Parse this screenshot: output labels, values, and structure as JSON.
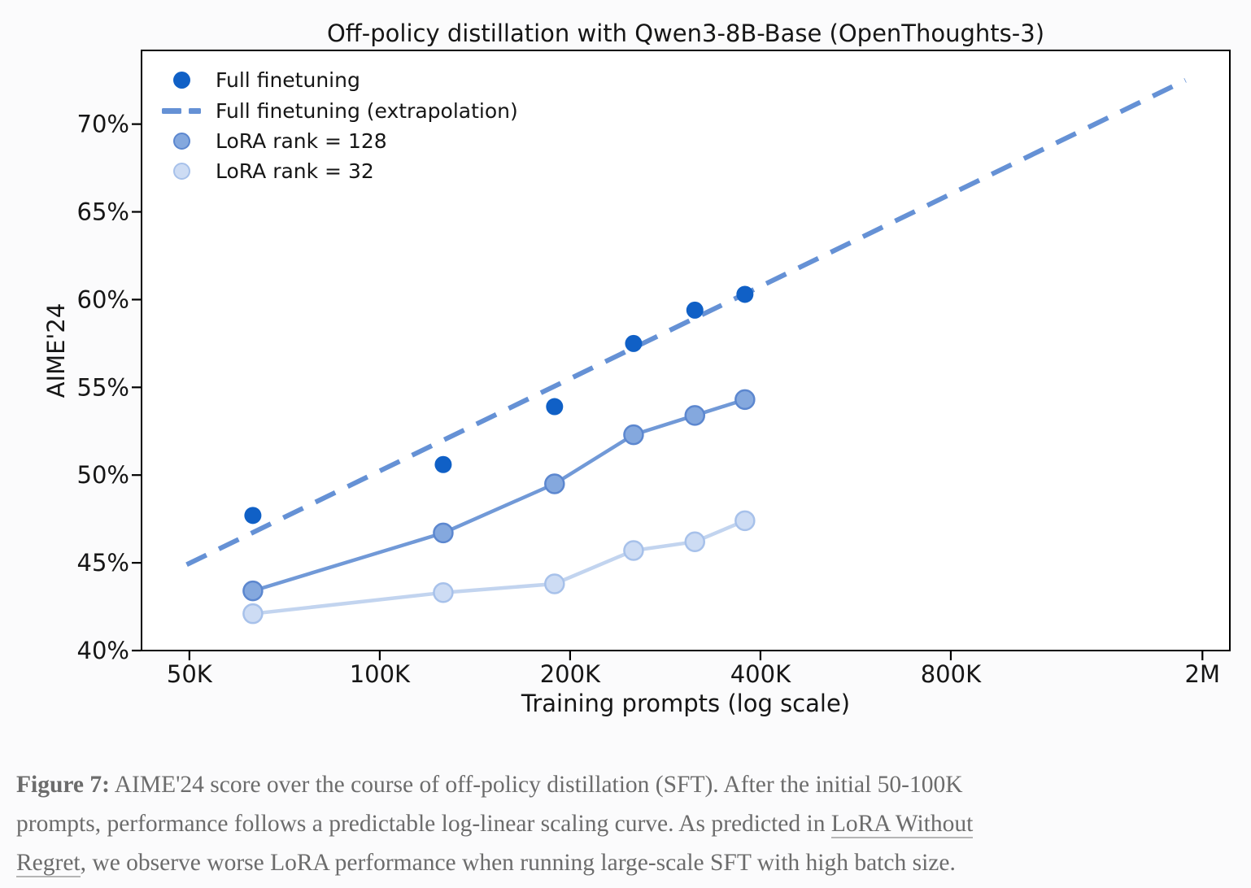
{
  "chart": {
    "title": "Off-policy distillation with Qwen3-8B-Base (OpenThoughts-3)",
    "xlabel": "Training prompts (log scale)",
    "ylabel": "AIME'24"
  },
  "chart_data": {
    "type": "scatter+line",
    "title": "Off-policy distillation with Qwen3-8B-Base (OpenThoughts-3)",
    "xlabel": "Training prompts (log scale)",
    "ylabel": "AIME'24",
    "x_scale": "log",
    "grid": false,
    "legend_position": "upper-left",
    "xlim": [
      42000,
      2210000
    ],
    "ylim": [
      40,
      74.2
    ],
    "x_ticks": [
      {
        "value": 50000,
        "label": "50K"
      },
      {
        "value": 100000,
        "label": "100K"
      },
      {
        "value": 200000,
        "label": "200K"
      },
      {
        "value": 400000,
        "label": "400K"
      },
      {
        "value": 800000,
        "label": "800K"
      },
      {
        "value": 2000000,
        "label": "2M"
      }
    ],
    "y_ticks": [
      {
        "value": 40,
        "label": "40%"
      },
      {
        "value": 45,
        "label": "45%"
      },
      {
        "value": 50,
        "label": "50%"
      },
      {
        "value": 55,
        "label": "55%"
      },
      {
        "value": 60,
        "label": "60%"
      },
      {
        "value": 65,
        "label": "65%"
      },
      {
        "value": 70,
        "label": "70%"
      }
    ],
    "x": [
      63000,
      126000,
      189000,
      252000,
      315000,
      378000
    ],
    "series": [
      {
        "id": "full",
        "label": "Full finetuning",
        "kind": "scatter",
        "color": "#1060c6",
        "marker_radius": 10.5,
        "y": [
          47.7,
          50.6,
          53.9,
          57.5,
          59.4,
          60.3
        ]
      },
      {
        "id": "full-extrapolation",
        "label": "Full finetuning (extrapolation)",
        "kind": "dashed-line",
        "color": "#6591d5",
        "line_width": 6,
        "dash": [
          27,
          17
        ],
        "x": [
          49500,
          1880000
        ],
        "y": [
          44.9,
          72.5
        ]
      },
      {
        "id": "lora-128",
        "label": "LoRA rank = 128",
        "kind": "line+markers",
        "line_color": "#7199d7",
        "line_width": 4.5,
        "marker_fill": "#84a8de",
        "marker_edge": "#5c87cf",
        "marker_radius": 11.5,
        "y": [
          43.4,
          46.7,
          49.5,
          52.3,
          53.4,
          54.3
        ]
      },
      {
        "id": "lora-32",
        "label": "LoRA rank = 32",
        "kind": "line+markers",
        "line_color": "#c2d4ef",
        "line_width": 4.5,
        "marker_fill": "#cddcf4",
        "marker_edge": "#a7c1ea",
        "marker_radius": 11.5,
        "y": [
          42.1,
          43.3,
          43.8,
          45.7,
          46.2,
          47.4
        ]
      }
    ],
    "draw_order": [
      "full-extrapolation",
      "lora-32",
      "lora-128",
      "full"
    ]
  },
  "legend": {
    "items": [
      {
        "id": "full",
        "label": "Full finetuning"
      },
      {
        "id": "full-extrapolation",
        "label": "Full finetuning (extrapolation)"
      },
      {
        "id": "lora-128",
        "label": "LoRA rank = 128"
      },
      {
        "id": "lora-32",
        "label": "LoRA rank = 32"
      }
    ]
  },
  "caption": {
    "lines": [
      {
        "segments": [
          {
            "text": "Figure 7:",
            "bold": true
          },
          {
            "text": " AIME'24 score over the course of off-policy distillation (SFT). After the initial 50-100K"
          }
        ]
      },
      {
        "segments": [
          {
            "text": "prompts, performance follows a predictable log-linear scaling curve. As predicted in "
          },
          {
            "text": "LoRA Without",
            "link": true
          }
        ]
      },
      {
        "segments": [
          {
            "text": "Regret",
            "link": true
          },
          {
            "text": ", we observe worse LoRA performance when running large-scale SFT with high batch size."
          }
        ]
      }
    ]
  }
}
